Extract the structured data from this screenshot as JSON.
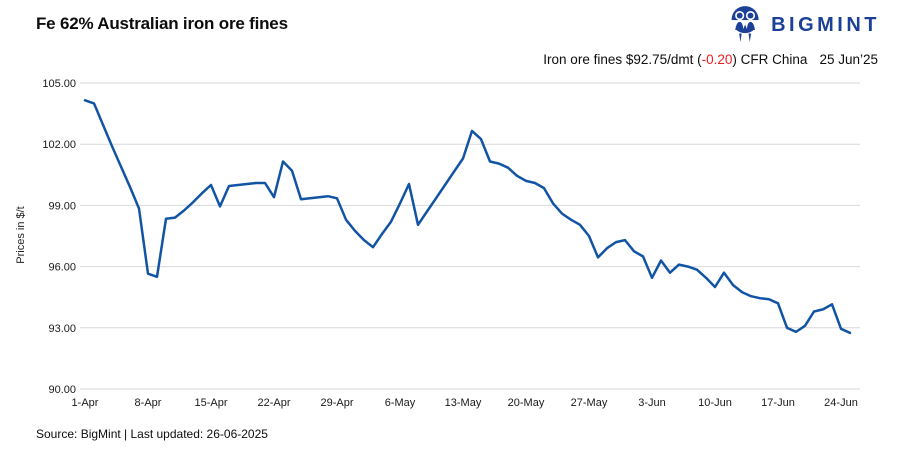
{
  "header": {
    "title": "Fe 62% Australian iron ore fines",
    "brand": "BIGMINT"
  },
  "subtitle": {
    "prefix": "Iron ore fines $92.75/dmt (",
    "change": "-0.20",
    "suffix": ") CFR China",
    "date": "25 Jun’25"
  },
  "footer": {
    "text": "Source: BigMint  | Last updated: 26-06-2025"
  },
  "colors": {
    "line": "#1254a4",
    "brand_navy": "#1c4098",
    "negative_red": "#ed1c24",
    "gridline": "#d9d9d9",
    "tick_text": "#1a1a1a"
  },
  "chart_data": {
    "type": "line",
    "title": "Fe 62% Australian iron ore fines",
    "xlabel": "",
    "ylabel": "Prices in $/t",
    "ylim": [
      90,
      105
    ],
    "y_tick_labels": [
      "105.00",
      "102.00",
      "99.00",
      "96.00",
      "93.00",
      "90.00"
    ],
    "x_tick_labels": [
      "1-Apr",
      "8-Apr",
      "15-Apr",
      "22-Apr",
      "29-Apr",
      "6-May",
      "13-May",
      "20-May",
      "27-May",
      "3-Jun",
      "10-Jun",
      "17-Jun",
      "24-Jun"
    ],
    "x_tick_interval_days": 7,
    "grid": "horizontal",
    "legend": "none",
    "series": [
      {
        "name": "Iron ore fines $/dmt CFR China",
        "color": "#1254a4",
        "start_date": "1-Apr-2025",
        "end_date": "25-Jun-2025",
        "frequency": "daily",
        "values": [
          104.15,
          104.0,
          102.95,
          101.9,
          100.9,
          99.9,
          98.85,
          95.65,
          95.5,
          98.35,
          98.4,
          98.75,
          99.15,
          99.6,
          100.0,
          98.95,
          99.95,
          100.0,
          100.05,
          100.1,
          100.1,
          99.4,
          101.15,
          100.7,
          99.3,
          99.35,
          99.4,
          99.45,
          99.35,
          98.3,
          97.75,
          97.3,
          96.95,
          97.6,
          98.2,
          99.1,
          100.05,
          98.05,
          98.7,
          99.35,
          100.0,
          100.65,
          101.3,
          102.65,
          102.25,
          101.15,
          101.05,
          100.85,
          100.45,
          100.2,
          100.1,
          99.85,
          99.1,
          98.6,
          98.3,
          98.05,
          97.5,
          96.45,
          96.9,
          97.2,
          97.3,
          96.75,
          96.5,
          95.45,
          96.3,
          95.7,
          96.1,
          96.0,
          95.85,
          95.45,
          95.0,
          95.7,
          95.1,
          94.75,
          94.55,
          94.45,
          94.4,
          94.2,
          93.0,
          92.8,
          93.1,
          93.8,
          93.9,
          94.15,
          92.95,
          92.75
        ]
      }
    ]
  }
}
